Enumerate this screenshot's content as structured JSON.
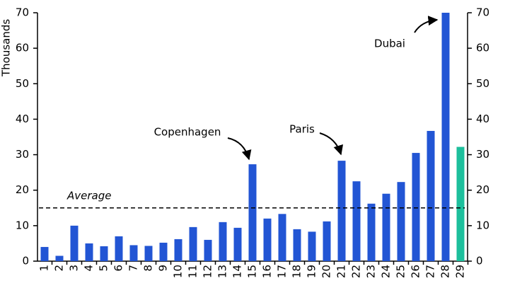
{
  "chart_data": {
    "type": "bar",
    "y_label": "Thousands",
    "categories": [
      "1",
      "2",
      "3",
      "4",
      "5",
      "6",
      "7",
      "8",
      "9",
      "10",
      "11",
      "12",
      "13",
      "14",
      "15",
      "16",
      "17",
      "18",
      "19",
      "20",
      "21",
      "22",
      "23",
      "24",
      "25",
      "26",
      "27",
      "28",
      "29"
    ],
    "values": [
      4,
      1.5,
      10,
      5,
      4.2,
      7,
      4.5,
      4.3,
      5.2,
      6.2,
      9.6,
      6,
      11,
      9.4,
      27.3,
      12,
      13.3,
      9,
      8.3,
      11.2,
      28.3,
      22.5,
      16.2,
      19,
      22.3,
      30.5,
      36.7,
      70,
      32.2
    ],
    "colors": [
      "#2255d4",
      "#2255d4",
      "#2255d4",
      "#2255d4",
      "#2255d4",
      "#2255d4",
      "#2255d4",
      "#2255d4",
      "#2255d4",
      "#2255d4",
      "#2255d4",
      "#2255d4",
      "#2255d4",
      "#2255d4",
      "#2255d4",
      "#2255d4",
      "#2255d4",
      "#2255d4",
      "#2255d4",
      "#2255d4",
      "#2255d4",
      "#2255d4",
      "#2255d4",
      "#2255d4",
      "#2255d4",
      "#2255d4",
      "#2255d4",
      "#2255d4",
      "#1dbf9c"
    ],
    "average": {
      "label": "Average",
      "value": 15
    },
    "annotations": [
      "Copenhagen",
      "Paris",
      "Dubai"
    ],
    "ylim": [
      0,
      70
    ],
    "yticks": [
      0,
      10,
      20,
      30,
      40,
      50,
      60,
      70
    ],
    "y2lim": [
      0,
      70
    ],
    "y2ticks": [
      0,
      10,
      20,
      30,
      40,
      50,
      60,
      70
    ]
  }
}
